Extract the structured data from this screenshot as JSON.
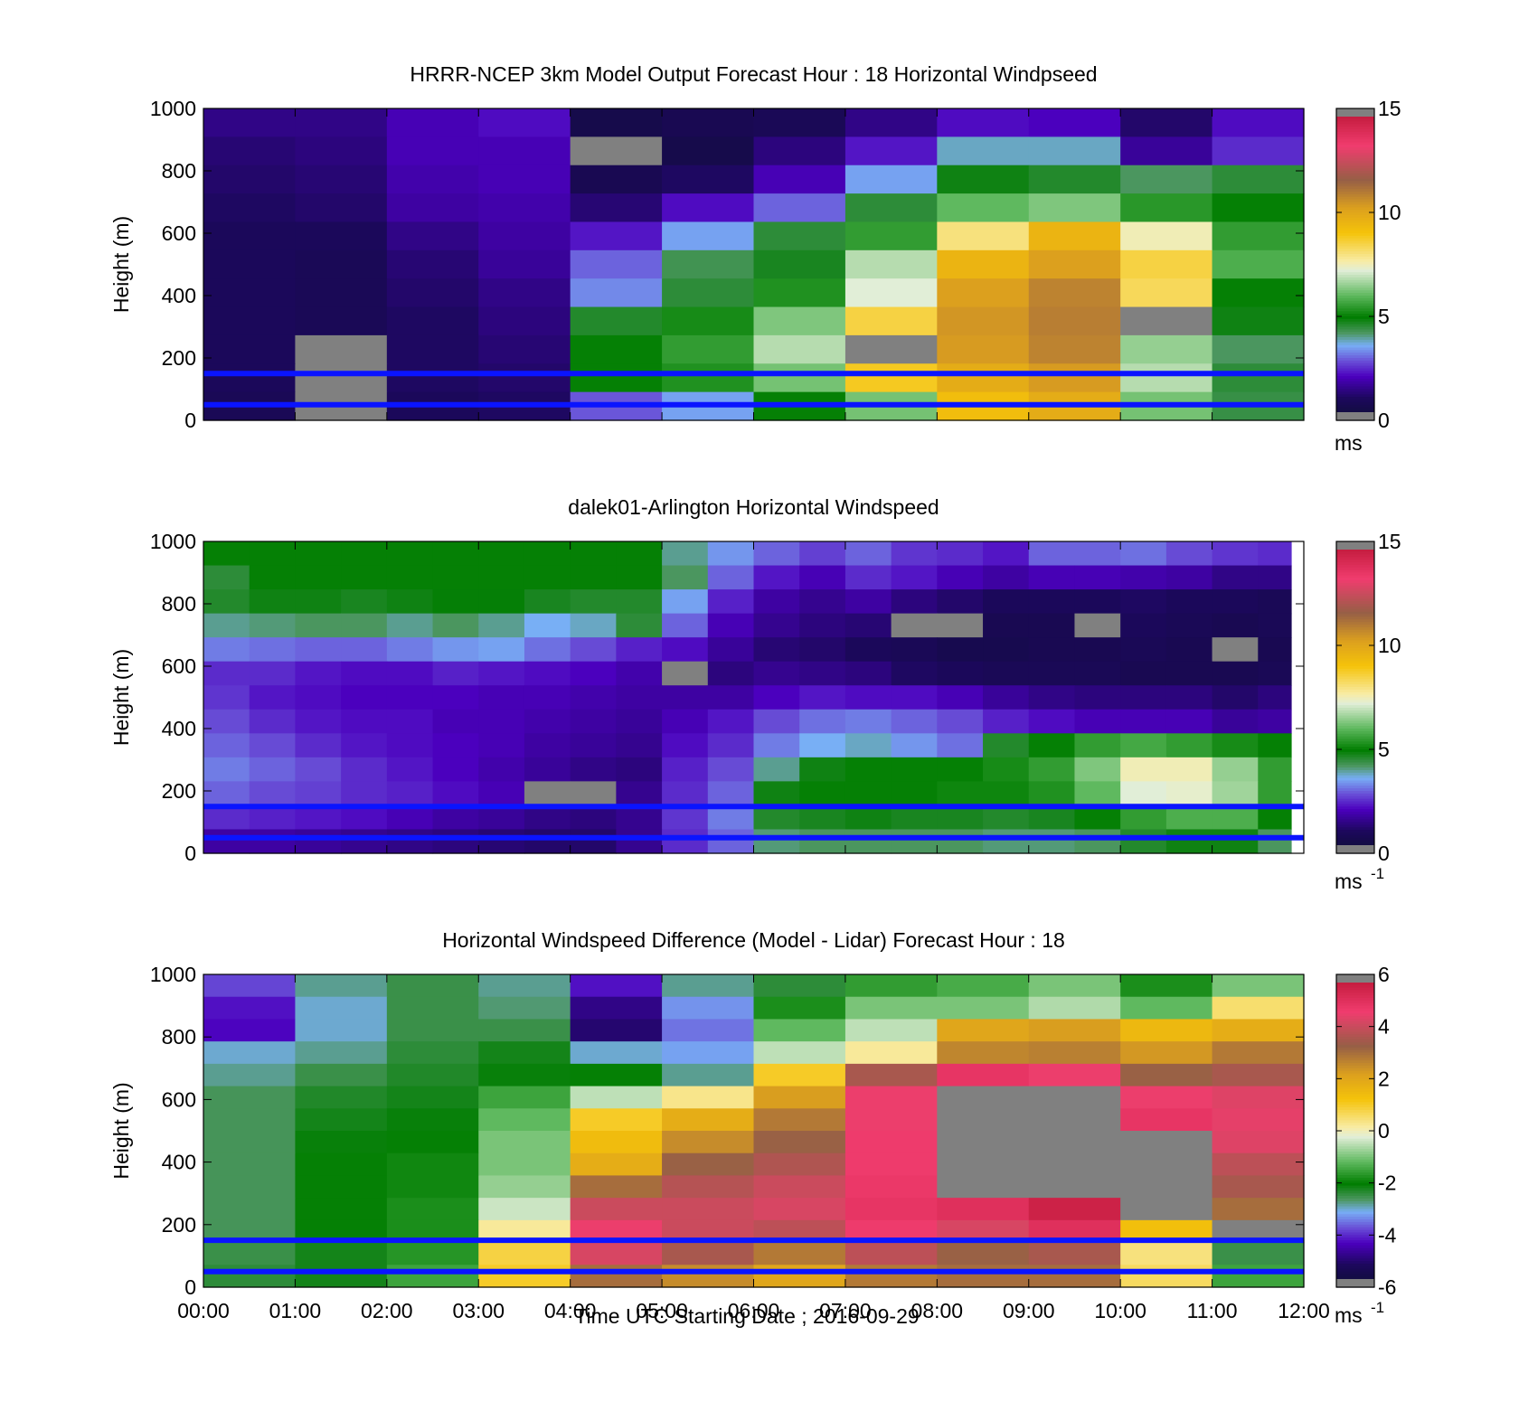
{
  "figure": {
    "xlabel": "Time UTC  Starting Date ; 2016-09-29"
  },
  "chart_data": [
    {
      "id": "model",
      "type": "heatmap",
      "title": "HRRR-NCEP 3km Model Output   Forecast Hour : 18 Horizontal Windpseed",
      "ylabel": "Height (m)",
      "ylim": [
        0,
        1000
      ],
      "yticks": [
        "0",
        "200",
        "400",
        "600",
        "800",
        "1000"
      ],
      "xlim_hours": [
        0,
        12
      ],
      "xtick_labels_shown": false,
      "colorbar": {
        "min": 0,
        "max": 15,
        "ticks": [
          "0",
          "5",
          "10",
          "15"
        ],
        "unit": "ms",
        "unit_sup": ""
      },
      "value_layout": "rows listed from top (1000 m) down to 0 m; one column per hourly block from 00:00",
      "values": [
        [
          1.5,
          1.5,
          2,
          2.2,
          0.6,
          0.8,
          0.9,
          1.5,
          2.2,
          2.1,
          1.2,
          2.2
        ],
        [
          1.3,
          1.4,
          2,
          2,
          -1,
          0.6,
          1.4,
          2.3,
          3.8,
          3.8,
          1.7,
          2.5
        ],
        [
          1.2,
          1.3,
          1.9,
          2,
          0.8,
          1.1,
          2,
          3.5,
          4.8,
          4.6,
          4.2,
          4.5
        ],
        [
          1.1,
          1.2,
          1.8,
          1.9,
          1.3,
          2.2,
          3,
          4.5,
          6,
          6.3,
          5.4,
          5
        ],
        [
          1,
          1,
          1.5,
          1.8,
          2.3,
          3.5,
          4.5,
          5.5,
          8,
          9.5,
          7.5,
          5.5
        ],
        [
          1,
          0.9,
          1.3,
          1.7,
          3,
          4.3,
          4.7,
          6.8,
          9.5,
          10.2,
          8.5,
          5.8
        ],
        [
          1,
          0.9,
          1.2,
          1.5,
          3.3,
          4.5,
          5.3,
          7.2,
          10.2,
          10.8,
          8.3,
          5
        ],
        [
          1,
          0.9,
          1.1,
          1.4,
          4.6,
          5.2,
          6.3,
          8.5,
          10.4,
          10.9,
          -1,
          4.8
        ],
        [
          1,
          -1,
          1.1,
          1.3,
          5,
          5.5,
          6.8,
          -1,
          10.3,
          10.8,
          6.5,
          4.2
        ],
        [
          1,
          -1,
          1.1,
          1.2,
          5,
          5.3,
          6.2,
          8.8,
          9.8,
          10.3,
          6.8,
          4.5
        ],
        [
          0.9,
          -1,
          1,
          1.1,
          2.9,
          3.5,
          5,
          6.2,
          9.2,
          9.8,
          6.2,
          4.4
        ]
      ]
    },
    {
      "id": "lidar",
      "type": "heatmap",
      "title": "dalek01-Arlington  Horizontal Windspeed",
      "ylabel": "Height (m)",
      "ylim": [
        0,
        1000
      ],
      "yticks": [
        "0",
        "200",
        "400",
        "600",
        "800",
        "1000"
      ],
      "xlim_hours": [
        0,
        12
      ],
      "xtick_labels_shown": false,
      "colorbar": {
        "min": 0,
        "max": 15,
        "ticks": [
          "0",
          "5",
          "10",
          "15"
        ],
        "unit": "ms",
        "unit_sup": "-1"
      },
      "value_layout": "rows listed from top (1000 m) down to 0 m; one column per half-hour block from 00:00",
      "values": [
        [
          5,
          5,
          5,
          5,
          5,
          5,
          5,
          5,
          5,
          5,
          4,
          3.4,
          3,
          2.7,
          3,
          2.6,
          2.5,
          2.3,
          3,
          3,
          3.1,
          2.8,
          2.6,
          2.5
        ],
        [
          4.5,
          5,
          5,
          5,
          5,
          5,
          5,
          5,
          5,
          5,
          4.2,
          3,
          2.3,
          2,
          2.5,
          2.3,
          2,
          1.8,
          2,
          2,
          1.9,
          1.8,
          1.5,
          1.5
        ],
        [
          4.6,
          4.8,
          4.8,
          4.7,
          4.8,
          4.9,
          4.9,
          4.7,
          4.6,
          4.6,
          3.5,
          2.4,
          1.8,
          1.6,
          1.8,
          1.4,
          1.2,
          1,
          1,
          1,
          1.1,
          1,
          1,
          0.9
        ],
        [
          4,
          4.1,
          4.2,
          4.2,
          4,
          4.2,
          4,
          3.6,
          3.8,
          4.5,
          3,
          2,
          1.6,
          1.4,
          1.3,
          -1,
          -1,
          0.8,
          0.8,
          -1,
          1,
          0.9,
          0.8,
          0.9
        ],
        [
          3.2,
          3.1,
          3,
          3,
          3.2,
          3.4,
          3.5,
          3.1,
          2.8,
          2.4,
          2.2,
          1.7,
          1.3,
          1.2,
          1,
          0.9,
          0.7,
          0.7,
          0.8,
          0.8,
          0.9,
          0.8,
          -1,
          0.8
        ],
        [
          2.5,
          2.5,
          2.3,
          2.2,
          2.2,
          2.4,
          2.3,
          2.2,
          2.1,
          1.9,
          -1,
          1.4,
          1.6,
          1.5,
          1.4,
          1.1,
          1,
          0.9,
          0.9,
          0.9,
          0.8,
          0.8,
          0.8,
          0.9
        ],
        [
          2.6,
          2.3,
          2.2,
          2.1,
          2.1,
          2.1,
          2,
          2,
          1.9,
          1.8,
          1.8,
          1.8,
          2.1,
          2.3,
          2.2,
          2.2,
          2,
          1.7,
          1.5,
          1.4,
          1.4,
          1.4,
          1.2,
          1.4
        ],
        [
          2.8,
          2.5,
          2.3,
          2.2,
          2.2,
          2,
          2,
          1.9,
          1.8,
          1.7,
          2,
          2.3,
          2.8,
          3.1,
          3.2,
          3,
          2.8,
          2.4,
          2.2,
          2,
          2,
          2,
          1.7,
          1.8
        ],
        [
          3,
          2.8,
          2.5,
          2.3,
          2.2,
          2.1,
          2,
          1.8,
          1.7,
          1.6,
          2.2,
          2.5,
          3.2,
          3.6,
          3.8,
          3.4,
          3.1,
          4.6,
          5,
          5.5,
          5.7,
          5.5,
          5.2,
          5
        ],
        [
          3.2,
          3,
          2.8,
          2.5,
          2.3,
          2.1,
          1.9,
          1.7,
          1.5,
          1.4,
          2.4,
          2.8,
          4,
          4.8,
          5,
          5,
          5,
          5.2,
          5.5,
          6.3,
          7.5,
          7.5,
          6.5,
          5.5
        ],
        [
          3,
          2.8,
          2.7,
          2.5,
          2.4,
          2.2,
          2,
          -1,
          -1,
          1.6,
          2.5,
          3,
          4.8,
          5,
          5,
          5,
          5.1,
          5.1,
          5.3,
          6,
          7.2,
          7.3,
          6.6,
          5.5
        ],
        [
          2.5,
          2.4,
          2.3,
          2.2,
          2,
          1.8,
          1.7,
          1.5,
          1.4,
          1.6,
          2.6,
          3.2,
          4.6,
          4.7,
          4.8,
          4.7,
          4.7,
          4.6,
          4.7,
          5,
          5.5,
          5.8,
          5.8,
          5
        ],
        [
          1.8,
          1.8,
          1.7,
          1.6,
          1.5,
          1.4,
          1.3,
          1.2,
          1.2,
          1.6,
          2.5,
          3,
          4.1,
          4.2,
          4.2,
          4.2,
          4.2,
          4.1,
          4.1,
          4.2,
          4.6,
          4.8,
          4.8,
          4.2
        ]
      ]
    },
    {
      "id": "difference",
      "type": "heatmap",
      "title": "Horizontal Windspeed Difference (Model - Lidar) Forecast Hour : 18",
      "ylabel": "Height (m)",
      "ylim": [
        0,
        1000
      ],
      "yticks": [
        "0",
        "200",
        "400",
        "600",
        "800",
        "1000"
      ],
      "xlim_hours": [
        0,
        12
      ],
      "xtick_labels_shown": true,
      "xticks": [
        "00:00",
        "01:00",
        "02:00",
        "03:00",
        "04:00",
        "05:00",
        "06:00",
        "07:00",
        "08:00",
        "09:00",
        "10:00",
        "11:00",
        "12:00"
      ],
      "colorbar": {
        "min": -6,
        "max": 6,
        "ticks": [
          "-6",
          "-4",
          "-2",
          "0",
          "2",
          "4",
          "6"
        ],
        "unit": "ms",
        "unit_sup": "-1"
      },
      "value_layout": "rows listed from top (1000 m) down to 0 m; one column per hourly block from 00:00",
      "values": [
        [
          -3.8,
          -2.8,
          -2.5,
          -2.8,
          -4.2,
          -2.8,
          -2.4,
          -1.6,
          -1.4,
          -1,
          -1.8,
          -1
        ],
        [
          -4.2,
          -3,
          -2.5,
          -2.7,
          -4.8,
          -3.3,
          -1.8,
          -1,
          -1,
          -0.6,
          -1.2,
          0.5
        ],
        [
          -4.3,
          -3,
          -2.5,
          -2.5,
          -5,
          -3.5,
          -1.2,
          -0.5,
          2,
          2.2,
          1.5,
          1.8
        ],
        [
          -3,
          -2.8,
          -2.4,
          -2.2,
          -3,
          -3.2,
          -0.5,
          0.2,
          2.6,
          2.7,
          2.3,
          2.8
        ],
        [
          -2.8,
          -2.5,
          -2.3,
          -2.1,
          -2,
          -2.8,
          1,
          3.5,
          4.8,
          4.5,
          3.2,
          3.5
        ],
        [
          -2.6,
          -2.3,
          -2.2,
          -1.5,
          -0.5,
          0.3,
          2.2,
          4.5,
          -99,
          -99,
          4.5,
          4.3
        ],
        [
          -2.6,
          -2.2,
          -2.1,
          -1.2,
          1,
          1.8,
          2.8,
          4.5,
          -99,
          -99,
          4.8,
          4.4
        ],
        [
          -2.6,
          -2.1,
          -2,
          -1,
          1.4,
          2.5,
          3.2,
          4.6,
          -99,
          -99,
          -99,
          4.3
        ],
        [
          -2.6,
          -2,
          -1.9,
          -1,
          1.8,
          3.2,
          3.6,
          4.6,
          -99,
          -99,
          -99,
          3.8
        ],
        [
          -2.6,
          -2,
          -1.9,
          -0.8,
          3,
          3.7,
          4,
          4.7,
          -99,
          -99,
          -99,
          3.5
        ],
        [
          -2.6,
          -2,
          -1.8,
          -0.4,
          4,
          4,
          4.2,
          4.8,
          5,
          5.5,
          -99,
          3
        ],
        [
          -2.6,
          -2,
          -1.8,
          0.2,
          4.5,
          4,
          3.8,
          4.6,
          4.2,
          5,
          1.3,
          -99
        ],
        [
          -2.5,
          -2.2,
          -1.7,
          0.8,
          4.2,
          3.5,
          2.8,
          3.8,
          3.2,
          3.5,
          0.4,
          -2.5
        ],
        [
          -2.4,
          -2.2,
          -1.5,
          1,
          3,
          2.5,
          2,
          2.8,
          3,
          3,
          0.6,
          -1.5
        ]
      ]
    }
  ]
}
